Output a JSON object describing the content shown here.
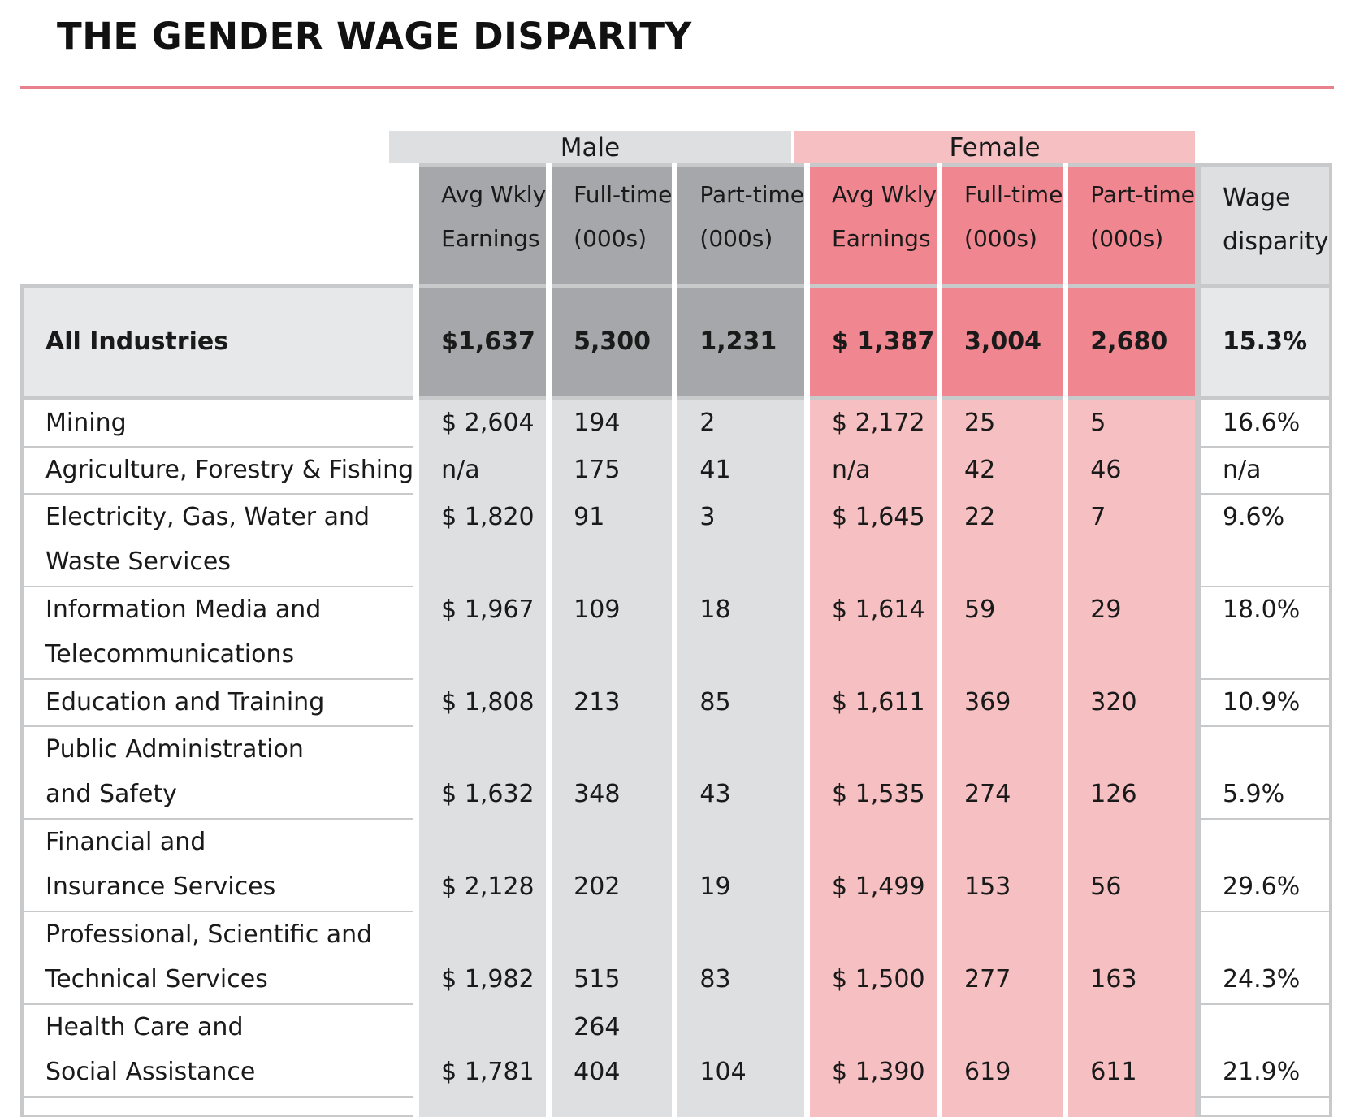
{
  "title": "THE GENDER WAGE DISPARITY",
  "groups": {
    "male": "Male",
    "female": "Female"
  },
  "headers": {
    "avg_l1": "Avg Wkly",
    "avg_l2": "Earnings",
    "ft_l1": "Full-time",
    "ft_l2": "(000s)",
    "pt_l1": "Part-time",
    "pt_l2": "(000s)",
    "wage_l1": "Wage",
    "wage_l2": "disparity"
  },
  "all_industries": {
    "label": "All Industries",
    "m_avg": "$1,637",
    "m_ft": "5,300",
    "m_pt": "1,231",
    "f_avg": "$ 1,387",
    "f_ft": "3,004",
    "f_pt": "2,680",
    "wage": "15.3%"
  },
  "rows": [
    {
      "l1": "Mining",
      "l2": "",
      "m_avg": "$ 2,604",
      "m_ft_extra": "",
      "m_ft": "194",
      "m_pt": "2",
      "f_avg": "$ 2,172",
      "f_ft": "25",
      "f_pt": "5",
      "wage": "16.6%"
    },
    {
      "l1": "Agriculture, Forestry & Fishing",
      "l2": "",
      "m_avg": "n/a",
      "m_ft_extra": "",
      "m_ft": "175",
      "m_pt": "41",
      "f_avg": "n/a",
      "f_ft": "42",
      "f_pt": "46",
      "wage": "n/a"
    },
    {
      "l1": "Electricity, Gas, Water and",
      "l2": "Waste Services",
      "m_avg": "$ 1,820",
      "m_ft_extra": "",
      "m_ft": "91",
      "m_pt": "3",
      "f_avg": "$ 1,645",
      "f_ft": "22",
      "f_pt": "7",
      "wage": "9.6%"
    },
    {
      "l1": "Information Media and",
      "l2": "Telecommunications",
      "m_avg": "$ 1,967",
      "m_ft_extra": "",
      "m_ft": "109",
      "m_pt": "18",
      "f_avg": "$ 1,614",
      "f_ft": "59",
      "f_pt": "29",
      "wage": "18.0%"
    },
    {
      "l1": "Education and Training",
      "l2": "",
      "m_avg": "$ 1,808",
      "m_ft_extra": "",
      "m_ft": "213",
      "m_pt": "85",
      "f_avg": "$ 1,611",
      "f_ft": "369",
      "f_pt": "320",
      "wage": "10.9%"
    },
    {
      "l1": "Public Administration",
      "l2": "and Safety",
      "m_avg": "$ 1,632",
      "m_ft_extra": "",
      "m_ft": "348",
      "m_pt": "43",
      "f_avg": "$ 1,535",
      "f_ft": "274",
      "f_pt": "126",
      "wage": "5.9%"
    },
    {
      "l1": "Financial and",
      "l2": "Insurance Services",
      "m_avg": "$ 2,128",
      "m_ft_extra": "",
      "m_ft": "202",
      "m_pt": "19",
      "f_avg": "$ 1,499",
      "f_ft": "153",
      "f_pt": "56",
      "wage": "29.6%"
    },
    {
      "l1": "Professional, Scientific and",
      "l2": "Technical Services",
      "m_avg": "$ 1,982",
      "m_ft_extra": "",
      "m_ft": "515",
      "m_pt": "83",
      "f_avg": "$ 1,500",
      "f_ft": "277",
      "f_pt": "163",
      "wage": "24.3%"
    },
    {
      "l1": "Health Care and",
      "l2": "Social Assistance",
      "m_avg": "$ 1,781",
      "m_ft_extra": "264",
      "m_ft": "404",
      "m_pt": "104",
      "f_avg": "$ 1,390",
      "f_ft": "619",
      "f_pt": "611",
      "wage": "21.9%"
    }
  ]
}
